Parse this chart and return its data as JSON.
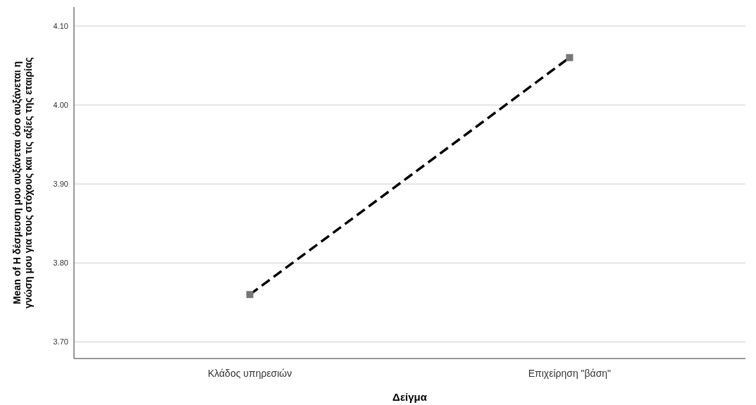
{
  "chart_data": {
    "type": "line",
    "xlabel": "Δείγμα",
    "ylabel": "Mean of Η δέσμευση μου αυξάνεται όσο αυξάνεται η γνώση μου για τους στόχους και τις αξίες της εταιρίας",
    "categories": [
      "Κλάδος υπηρεσιών",
      "Επιχείρηση \"βάση\""
    ],
    "series": [
      {
        "color": "#000000",
        "values": [
          3.76,
          4.06
        ]
      }
    ],
    "ylim": [
      3.679,
      4.124
    ],
    "yticks": [
      {
        "value": 3.7,
        "label": "3.70"
      },
      {
        "value": 3.8,
        "label": "3.80"
      },
      {
        "value": 3.9,
        "label": "3.90"
      },
      {
        "value": 4.0,
        "label": "4.00"
      },
      {
        "value": 4.1,
        "label": "4.10"
      }
    ],
    "grid": "y",
    "marker": "square",
    "line_style": "dashed"
  }
}
